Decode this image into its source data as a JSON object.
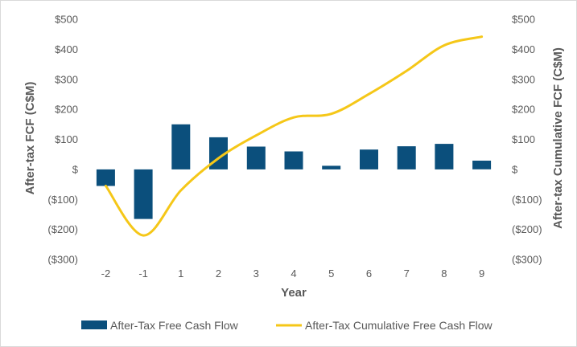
{
  "chart_data": {
    "type": "bar",
    "categories": [
      "-2",
      "-1",
      "1",
      "2",
      "3",
      "4",
      "5",
      "6",
      "7",
      "8",
      "9"
    ],
    "xlabel": "Year",
    "ylabel": "After-tax FCF (C$M)",
    "y2label": "After-tax Cumulative FCF (C$M)",
    "ylim": [
      -300,
      500
    ],
    "y2lim": [
      -300,
      500
    ],
    "yticks": [
      "$500",
      "$400",
      "$300",
      "$200",
      "$100",
      "$0",
      "($100)",
      "($200)",
      "($300)"
    ],
    "yticks_display": [
      "$500",
      "$400",
      "$300",
      "$200",
      "$100",
      "$",
      "($100)",
      "($200)",
      "($300)"
    ],
    "grid": false,
    "legend_position": "bottom",
    "series": [
      {
        "name": "After-Tax Free Cash Flow",
        "type": "bar",
        "color": "#0b4f7c",
        "axis": "left",
        "values": [
          -55,
          -165,
          150,
          107,
          76,
          60,
          12,
          66,
          77,
          85,
          29
        ]
      },
      {
        "name": "After-Tax Cumulative Free Cash Flow",
        "type": "line",
        "color": "#f5c718",
        "axis": "right",
        "values": [
          -55,
          -220,
          -70,
          37,
          113,
          173,
          185,
          251,
          328,
          413,
          442
        ]
      }
    ]
  }
}
